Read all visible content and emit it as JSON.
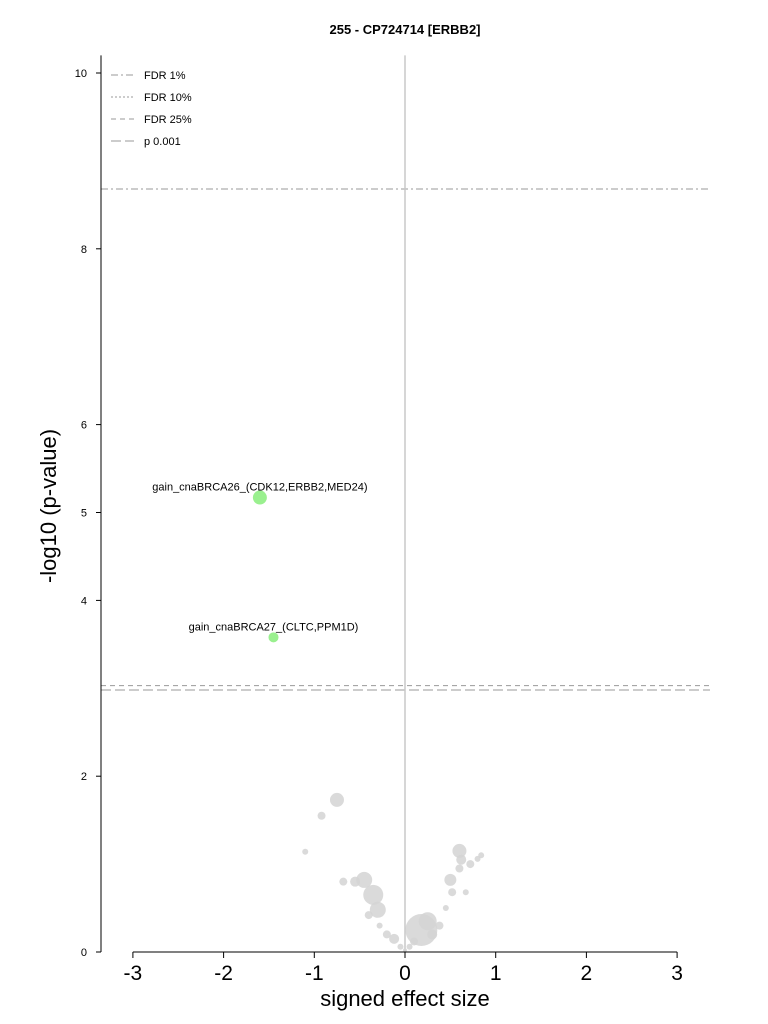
{
  "chart_data": {
    "type": "scatter",
    "title": "255 - CP724714 [ERBB2]",
    "xlabel": "signed effect size",
    "ylabel": "-log10 (p-value)",
    "xlim": [
      -3.35,
      3.35
    ],
    "ylim": [
      0,
      10.2
    ],
    "x_ticks": [
      "-3",
      "-2",
      "-1",
      "0",
      "1",
      "2",
      "3"
    ],
    "y_ticks": [
      "0",
      "2",
      "4",
      "5",
      "6",
      "8",
      "10"
    ],
    "legend": {
      "position": "top-left",
      "entries": [
        {
          "label": "FDR 1%",
          "style": "dash-dot"
        },
        {
          "label": "FDR 10%",
          "style": "dotted"
        },
        {
          "label": "FDR 25%",
          "style": "dashed"
        },
        {
          "label": "p 0.001",
          "style": "long-dash"
        }
      ]
    },
    "threshold_lines": [
      {
        "name": "FDR 1%",
        "y": 8.68,
        "style": "dash-dot"
      },
      {
        "name": "FDR 25%",
        "y": 3.03,
        "style": "dashed"
      },
      {
        "name": "p 0.001",
        "y": 2.98,
        "style": "long-dash"
      }
    ],
    "zero_line_x": 0,
    "highlighted_points": [
      {
        "label": "gain_cnaBRCA26_(CDK12,ERBB2,MED24)",
        "x": -1.6,
        "y": 5.17,
        "size": 7,
        "color": "#9af08f"
      },
      {
        "label": "gain_cnaBRCA27_(CLTC,PPM1D)",
        "x": -1.45,
        "y": 3.58,
        "size": 5,
        "color": "#9af08f"
      }
    ],
    "background_points": [
      {
        "x": -0.75,
        "y": 1.73,
        "size": 7
      },
      {
        "x": -0.92,
        "y": 1.55,
        "size": 4
      },
      {
        "x": -1.1,
        "y": 1.14,
        "size": 3
      },
      {
        "x": -0.45,
        "y": 0.82,
        "size": 8
      },
      {
        "x": -0.55,
        "y": 0.8,
        "size": 5
      },
      {
        "x": -0.68,
        "y": 0.8,
        "size": 4
      },
      {
        "x": -0.35,
        "y": 0.65,
        "size": 10
      },
      {
        "x": -0.3,
        "y": 0.48,
        "size": 8
      },
      {
        "x": -0.4,
        "y": 0.42,
        "size": 4
      },
      {
        "x": -0.28,
        "y": 0.3,
        "size": 3
      },
      {
        "x": -0.2,
        "y": 0.2,
        "size": 4
      },
      {
        "x": -0.12,
        "y": 0.15,
        "size": 5
      },
      {
        "x": -0.05,
        "y": 0.06,
        "size": 3
      },
      {
        "x": 0.0,
        "y": 0.02,
        "size": 2
      },
      {
        "x": 0.05,
        "y": 0.06,
        "size": 3
      },
      {
        "x": 0.1,
        "y": 0.12,
        "size": 4
      },
      {
        "x": 0.18,
        "y": 0.25,
        "size": 16
      },
      {
        "x": 0.25,
        "y": 0.35,
        "size": 9
      },
      {
        "x": 0.3,
        "y": 0.2,
        "size": 5
      },
      {
        "x": 0.38,
        "y": 0.3,
        "size": 4
      },
      {
        "x": 0.45,
        "y": 0.5,
        "size": 3
      },
      {
        "x": 0.5,
        "y": 0.82,
        "size": 6
      },
      {
        "x": 0.52,
        "y": 0.68,
        "size": 4
      },
      {
        "x": 0.6,
        "y": 1.15,
        "size": 7
      },
      {
        "x": 0.62,
        "y": 1.05,
        "size": 5
      },
      {
        "x": 0.6,
        "y": 0.95,
        "size": 4
      },
      {
        "x": 0.67,
        "y": 0.68,
        "size": 3
      },
      {
        "x": 0.72,
        "y": 1.0,
        "size": 4
      },
      {
        "x": 0.8,
        "y": 1.06,
        "size": 3
      },
      {
        "x": 0.84,
        "y": 1.1,
        "size": 3
      }
    ],
    "background_color": "#d4d4d4",
    "grid": false
  }
}
